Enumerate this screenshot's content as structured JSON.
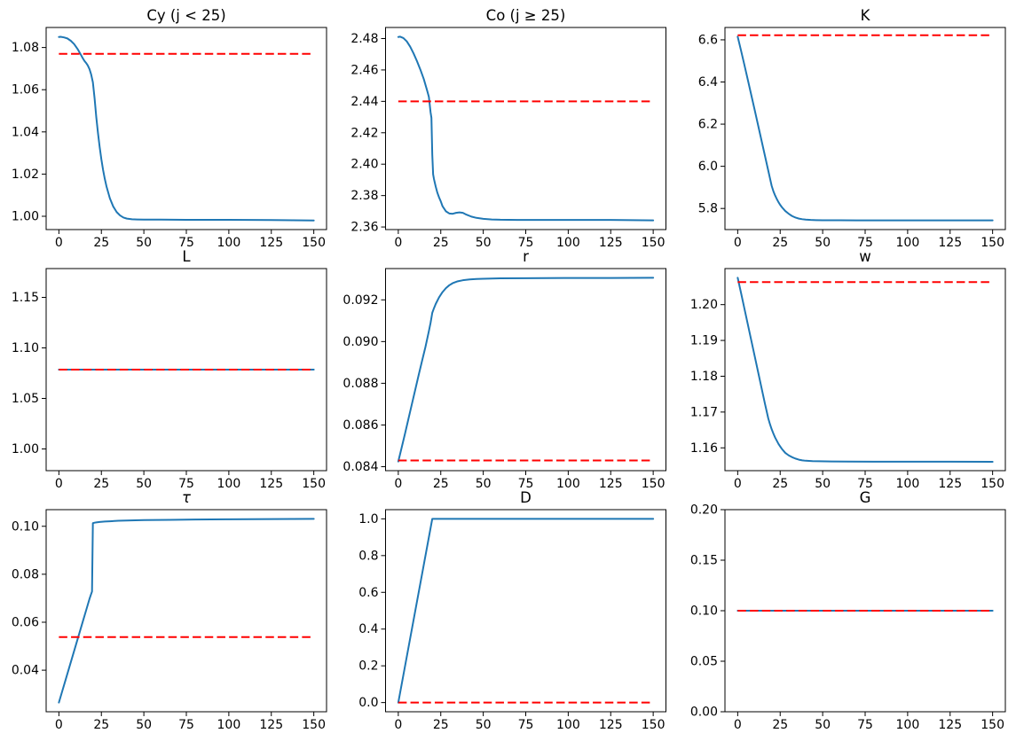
{
  "figure": {
    "background": "#ffffff",
    "path_color": "#1f77b4",
    "steady_state_color": "#ff0000",
    "rows": 3,
    "cols": 3
  },
  "chart_data": [
    {
      "type": "line",
      "id": "cy",
      "title": "Cy (j < 25)",
      "xlim": [
        -7.5,
        157.5
      ],
      "ylim": [
        0.9937,
        1.0895
      ],
      "xticks": {
        "values": [
          0,
          25,
          50,
          75,
          100,
          125,
          150
        ],
        "labels": [
          "0",
          "25",
          "50",
          "75",
          "100",
          "125",
          "150"
        ]
      },
      "yticks": {
        "values": [
          1.0,
          1.02,
          1.04,
          1.06,
          1.08
        ],
        "labels": [
          "1.00",
          "1.02",
          "1.04",
          "1.06",
          "1.08"
        ]
      },
      "steady_state": 1.077,
      "series": [
        {
          "name": "transition-path",
          "x": [
            0,
            1,
            3,
            5,
            7,
            9,
            11,
            13,
            14,
            15,
            16,
            17,
            18,
            19,
            20,
            21,
            22,
            23,
            24,
            25,
            26,
            27,
            28,
            30,
            32,
            34,
            36,
            38,
            40,
            43,
            46,
            50,
            60,
            75,
            100,
            125,
            150
          ],
          "y": [
            1.085,
            1.0851,
            1.0848,
            1.0843,
            1.0832,
            1.0816,
            1.0793,
            1.0765,
            1.075,
            1.0737,
            1.0727,
            1.0715,
            1.0698,
            1.0672,
            1.0635,
            1.056,
            1.047,
            1.0395,
            1.0328,
            1.027,
            1.022,
            1.0178,
            1.0142,
            1.0085,
            1.0046,
            1.002,
            1.0004,
            0.9994,
            0.9989,
            0.9986,
            0.9985,
            0.9984,
            0.9984,
            0.9983,
            0.9983,
            0.9982,
            0.998
          ]
        },
        {
          "name": "initial-steady-state",
          "value": 1.077
        }
      ]
    },
    {
      "type": "line",
      "id": "co",
      "title": "Co (j ≥ 25)",
      "xlim": [
        -7.5,
        157.5
      ],
      "ylim": [
        2.35835,
        2.48705
      ],
      "xticks": {
        "values": [
          0,
          25,
          50,
          75,
          100,
          125,
          150
        ],
        "labels": [
          "0",
          "25",
          "50",
          "75",
          "100",
          "125",
          "150"
        ]
      },
      "yticks": {
        "values": [
          2.36,
          2.38,
          2.4,
          2.42,
          2.44,
          2.46,
          2.48
        ],
        "labels": [
          "2.36",
          "2.38",
          "2.40",
          "2.42",
          "2.44",
          "2.46",
          "2.48"
        ]
      },
      "steady_state": 2.44,
      "series": [
        {
          "name": "transition-path",
          "x": [
            0,
            1,
            3,
            5,
            7,
            9,
            11,
            13,
            15,
            17,
            18,
            19,
            19.5,
            20,
            20.5,
            21,
            22,
            23,
            24,
            25,
            26,
            28,
            30,
            32,
            34,
            36,
            38,
            40,
            43,
            46,
            50,
            55,
            60,
            70,
            85,
            100,
            125,
            150
          ],
          "y": [
            2.481,
            2.4812,
            2.4803,
            2.4782,
            2.4748,
            2.4705,
            2.4656,
            2.4602,
            2.4542,
            2.4468,
            2.4428,
            2.433,
            2.4295,
            2.406,
            2.3935,
            2.3905,
            2.3858,
            2.3818,
            2.3788,
            2.3763,
            2.3733,
            2.37,
            2.3686,
            2.3684,
            2.369,
            2.3693,
            2.369,
            2.3679,
            2.3666,
            2.3658,
            2.3652,
            2.3648,
            2.3646,
            2.3645,
            2.3645,
            2.3645,
            2.3645,
            2.3642
          ]
        },
        {
          "name": "initial-steady-state",
          "value": 2.44
        }
      ]
    },
    {
      "type": "line",
      "id": "k",
      "title": "K",
      "xlim": [
        -7.5,
        157.5
      ],
      "ylim": [
        5.6999,
        6.6586
      ],
      "xticks": {
        "values": [
          0,
          25,
          50,
          75,
          100,
          125,
          150
        ],
        "labels": [
          "0",
          "25",
          "50",
          "75",
          "100",
          "125",
          "150"
        ]
      },
      "yticks": {
        "values": [
          5.8,
          6.0,
          6.2,
          6.4,
          6.6
        ],
        "labels": [
          "5.8",
          "6.0",
          "6.2",
          "6.4",
          "6.6"
        ]
      },
      "steady_state": 6.622,
      "series": [
        {
          "name": "transition-path",
          "x": [
            0,
            2,
            4,
            6,
            8,
            10,
            12,
            14,
            16,
            18,
            19,
            20,
            21,
            22,
            23,
            24,
            25,
            26,
            28,
            30,
            32,
            34,
            36,
            38,
            40,
            43,
            46,
            50,
            55,
            60,
            70,
            85,
            100,
            125,
            150
          ],
          "y": [
            6.615,
            6.548,
            6.479,
            6.409,
            6.338,
            6.267,
            6.195,
            6.123,
            6.051,
            5.979,
            5.943,
            5.907,
            5.882,
            5.862,
            5.845,
            5.83,
            5.817,
            5.806,
            5.788,
            5.775,
            5.764,
            5.757,
            5.752,
            5.749,
            5.747,
            5.7455,
            5.7448,
            5.7443,
            5.744,
            5.7438,
            5.7437,
            5.7436,
            5.7436,
            5.7436,
            5.7435
          ]
        },
        {
          "name": "initial-steady-state",
          "value": 6.622
        }
      ]
    },
    {
      "type": "line",
      "id": "l",
      "title": "L",
      "xlim": [
        -7.5,
        157.5
      ],
      "ylim": [
        0.9785,
        1.1785
      ],
      "xticks": {
        "values": [
          0,
          25,
          50,
          75,
          100,
          125,
          150
        ],
        "labels": [
          "0",
          "25",
          "50",
          "75",
          "100",
          "125",
          "150"
        ]
      },
      "yticks": {
        "values": [
          1.0,
          1.05,
          1.1,
          1.15
        ],
        "labels": [
          "1.00",
          "1.05",
          "1.10",
          "1.15"
        ]
      },
      "steady_state": 1.0785,
      "series": [
        {
          "name": "transition-path",
          "x": [
            0,
            150
          ],
          "y": [
            1.0785,
            1.0785
          ]
        },
        {
          "name": "initial-steady-state",
          "value": 1.0785
        }
      ]
    },
    {
      "type": "line",
      "id": "r",
      "title": "r",
      "xlim": [
        -7.5,
        157.5
      ],
      "ylim": [
        0.08381,
        0.0935
      ],
      "xticks": {
        "values": [
          0,
          25,
          50,
          75,
          100,
          125,
          150
        ],
        "labels": [
          "0",
          "25",
          "50",
          "75",
          "100",
          "125",
          "150"
        ]
      },
      "yticks": {
        "values": [
          0.084,
          0.086,
          0.088,
          0.09,
          0.092
        ],
        "labels": [
          "0.084",
          "0.086",
          "0.088",
          "0.090",
          "0.092"
        ]
      },
      "steady_state": 0.0843,
      "series": [
        {
          "name": "transition-path",
          "x": [
            0,
            2,
            4,
            6,
            8,
            10,
            12,
            14,
            16,
            18,
            19,
            20,
            21,
            22,
            24,
            26,
            28,
            30,
            32,
            35,
            38,
            42,
            46,
            50,
            60,
            75,
            100,
            125,
            150
          ],
          "y": [
            0.08425,
            0.08492,
            0.0856,
            0.0863,
            0.087,
            0.0877,
            0.0884,
            0.08908,
            0.08975,
            0.0905,
            0.0909,
            0.09138,
            0.0916,
            0.0918,
            0.09212,
            0.09237,
            0.09256,
            0.0927,
            0.0928,
            0.09289,
            0.09294,
            0.09298,
            0.093,
            0.09301,
            0.09303,
            0.09304,
            0.09305,
            0.09305,
            0.09306
          ]
        },
        {
          "name": "initial-steady-state",
          "value": 0.0843
        }
      ]
    },
    {
      "type": "line",
      "id": "w",
      "title": "w",
      "xlim": [
        -7.5,
        157.5
      ],
      "ylim": [
        1.15363,
        1.21007
      ],
      "xticks": {
        "values": [
          0,
          25,
          50,
          75,
          100,
          125,
          150
        ],
        "labels": [
          "0",
          "25",
          "50",
          "75",
          "100",
          "125",
          "150"
        ]
      },
      "yticks": {
        "values": [
          1.16,
          1.17,
          1.18,
          1.19,
          1.2
        ],
        "labels": [
          "1.16",
          "1.17",
          "1.18",
          "1.19",
          "1.20"
        ]
      },
      "steady_state": 1.2063,
      "series": [
        {
          "name": "transition-path",
          "x": [
            0,
            2,
            4,
            6,
            8,
            10,
            12,
            14,
            16,
            18,
            19,
            20,
            21,
            22,
            23,
            24,
            25,
            26,
            28,
            30,
            32,
            34,
            36,
            38,
            40,
            44,
            48,
            55,
            65,
            80,
            100,
            125,
            150
          ],
          "y": [
            1.2075,
            1.2032,
            1.1988,
            1.1944,
            1.19,
            1.1856,
            1.1812,
            1.1768,
            1.1724,
            1.1682,
            1.1666,
            1.1652,
            1.164,
            1.1629,
            1.162,
            1.1611,
            1.1604,
            1.1597,
            1.1586,
            1.1579,
            1.1574,
            1.157,
            1.1567,
            1.1565,
            1.1564,
            1.1563,
            1.15625,
            1.1562,
            1.15617,
            1.15615,
            1.15614,
            1.15613,
            1.1561
          ]
        },
        {
          "name": "initial-steady-state",
          "value": 1.2063
        }
      ]
    },
    {
      "type": "line",
      "id": "tau",
      "title": "τ",
      "xlim": [
        -7.5,
        157.5
      ],
      "ylim": [
        0.02267,
        0.10693
      ],
      "xticks": {
        "values": [
          0,
          25,
          50,
          75,
          100,
          125,
          150
        ],
        "labels": [
          "0",
          "25",
          "50",
          "75",
          "100",
          "125",
          "150"
        ]
      },
      "yticks": {
        "values": [
          0.04,
          0.06,
          0.08,
          0.1
        ],
        "labels": [
          "0.04",
          "0.06",
          "0.08",
          "0.10"
        ]
      },
      "steady_state": 0.0538,
      "series": [
        {
          "name": "transition-path",
          "x": [
            0,
            2,
            4,
            6,
            8,
            10,
            12,
            14,
            16,
            18,
            19,
            19.5,
            20,
            21,
            22,
            24,
            27,
            30,
            35,
            40,
            50,
            65,
            80,
            100,
            125,
            150
          ],
          "y": [
            0.0265,
            0.0313,
            0.0361,
            0.0409,
            0.0457,
            0.0505,
            0.0553,
            0.0601,
            0.0649,
            0.0697,
            0.0718,
            0.0728,
            0.1013,
            0.1015,
            0.1016,
            0.1018,
            0.102,
            0.1021,
            0.1023,
            0.1024,
            0.1026,
            0.1027,
            0.1028,
            0.1029,
            0.103,
            0.1031
          ]
        },
        {
          "name": "initial-steady-state",
          "value": 0.0538
        }
      ]
    },
    {
      "type": "line",
      "id": "d",
      "title": "D",
      "xlim": [
        -7.5,
        157.5
      ],
      "ylim": [
        -0.05,
        1.05
      ],
      "xticks": {
        "values": [
          0,
          25,
          50,
          75,
          100,
          125,
          150
        ],
        "labels": [
          "0",
          "25",
          "50",
          "75",
          "100",
          "125",
          "150"
        ]
      },
      "yticks": {
        "values": [
          0.0,
          0.2,
          0.4,
          0.6,
          0.8,
          1.0
        ],
        "labels": [
          "0.0",
          "0.2",
          "0.4",
          "0.6",
          "0.8",
          "1.0"
        ]
      },
      "steady_state": 0.0,
      "series": [
        {
          "name": "transition-path",
          "x": [
            0,
            20,
            150
          ],
          "y": [
            0.0,
            1.0,
            1.0
          ]
        },
        {
          "name": "initial-steady-state",
          "value": 0.0
        }
      ]
    },
    {
      "type": "line",
      "id": "g",
      "title": "G",
      "xlim": [
        -7.5,
        157.5
      ],
      "ylim": [
        0.0,
        0.2
      ],
      "xticks": {
        "values": [
          0,
          25,
          50,
          75,
          100,
          125,
          150
        ],
        "labels": [
          "0",
          "25",
          "50",
          "75",
          "100",
          "125",
          "150"
        ]
      },
      "yticks": {
        "values": [
          0.0,
          0.05,
          0.1,
          0.15,
          0.2
        ],
        "labels": [
          "0.00",
          "0.05",
          "0.10",
          "0.15",
          "0.20"
        ]
      },
      "steady_state": 0.1,
      "series": [
        {
          "name": "transition-path",
          "x": [
            0,
            150
          ],
          "y": [
            0.1,
            0.1
          ]
        },
        {
          "name": "initial-steady-state",
          "value": 0.1
        }
      ]
    }
  ]
}
